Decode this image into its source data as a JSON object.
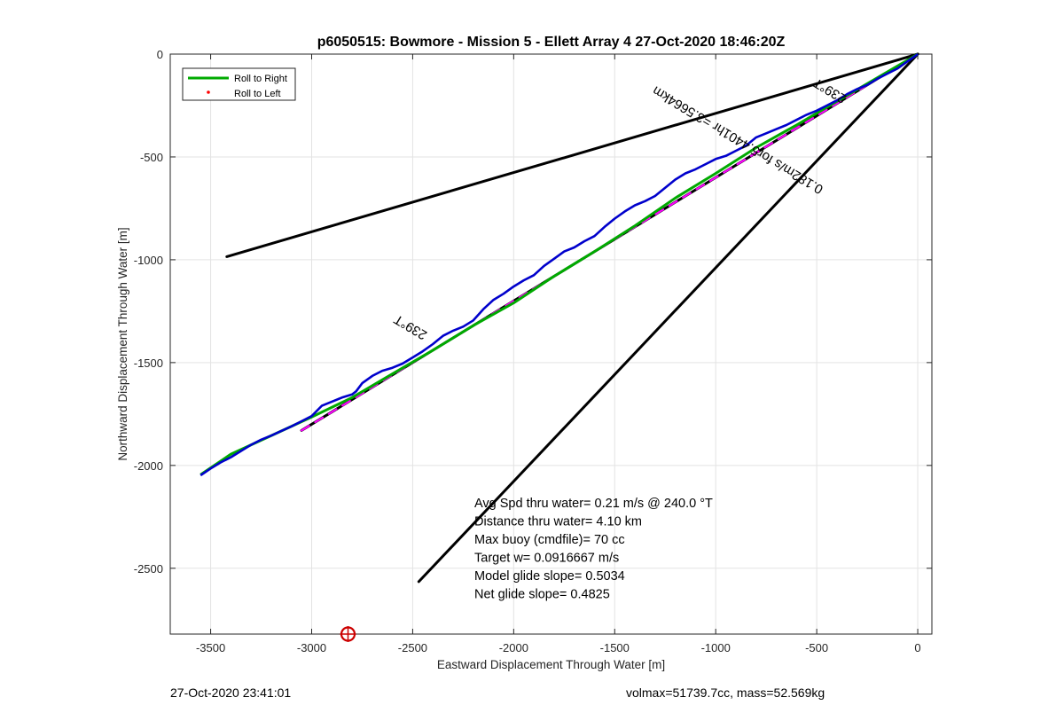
{
  "chart_data": {
    "type": "line",
    "title": "p6050515: Bowmore - Mission 5 - Ellett Array 4 27-Oct-2020 18:46:20Z",
    "xlabel": "Eastward Displacement Through Water [m]",
    "ylabel": "Northward Displacement Through Water [m]",
    "xlim": [
      -3700,
      70
    ],
    "ylim": [
      -2820,
      0
    ],
    "xticks": [
      -3500,
      -3000,
      -2500,
      -2000,
      -1500,
      -1000,
      -500,
      0
    ],
    "xtick_labels": [
      "-3500",
      "-3000",
      "-2500",
      "-2000",
      "-1500",
      "-1000",
      "-500",
      "0"
    ],
    "yticks": [
      0,
      -500,
      -1000,
      -1500,
      -2000,
      -2500
    ],
    "ytick_labels": [
      "0",
      "-500",
      "-1000",
      "-1500",
      "-2000",
      "-2500"
    ],
    "grid": true,
    "legend": {
      "position": "top-left",
      "entries": [
        {
          "label": "Roll to Right",
          "color": "#00aa00",
          "style": "line"
        },
        {
          "label": "Roll to Left",
          "color": "#ff0000",
          "style": "dot"
        }
      ]
    },
    "series": [
      {
        "name": "Roll to Right",
        "color": "#00aa00",
        "x": [
          -3550,
          -3400,
          -3200,
          -3000,
          -2800,
          -2600,
          -2400,
          -2200,
          -2000,
          -1800,
          -1600,
          -1400,
          -1200,
          -1000,
          -800,
          -600,
          -400,
          -200,
          0
        ],
        "y": [
          -2045,
          -1945,
          -1855,
          -1765,
          -1670,
          -1555,
          -1440,
          -1320,
          -1210,
          -1080,
          -960,
          -835,
          -700,
          -580,
          -455,
          -345,
          -230,
          -115,
          0
        ]
      },
      {
        "color": "#0000cc",
        "x": [
          -3550,
          -3500,
          -3450,
          -3400,
          -3350,
          -3300,
          -3250,
          -3200,
          -3150,
          -3100,
          -3050,
          -3000,
          -2950,
          -2900,
          -2850,
          -2800,
          -2780,
          -2750,
          -2700,
          -2650,
          -2600,
          -2550,
          -2500,
          -2450,
          -2400,
          -2350,
          -2300,
          -2250,
          -2200,
          -2150,
          -2100,
          -2050,
          -2000,
          -1950,
          -1900,
          -1850,
          -1800,
          -1750,
          -1700,
          -1650,
          -1600,
          -1550,
          -1500,
          -1450,
          -1400,
          -1350,
          -1300,
          -1250,
          -1200,
          -1150,
          -1100,
          -1050,
          -1000,
          -950,
          -900,
          -850,
          -800,
          -750,
          -700,
          -650,
          -600,
          -550,
          -500,
          -450,
          -400,
          -350,
          -300,
          -250,
          -200,
          -150,
          -100,
          -50,
          0
        ],
        "y": [
          -2048,
          -2015,
          -1985,
          -1960,
          -1930,
          -1900,
          -1875,
          -1855,
          -1832,
          -1810,
          -1785,
          -1760,
          -1710,
          -1690,
          -1670,
          -1655,
          -1640,
          -1600,
          -1565,
          -1540,
          -1525,
          -1505,
          -1475,
          -1445,
          -1410,
          -1370,
          -1345,
          -1325,
          -1295,
          -1240,
          -1195,
          -1165,
          -1130,
          -1100,
          -1075,
          -1030,
          -995,
          -960,
          -940,
          -910,
          -885,
          -840,
          -800,
          -765,
          -735,
          -715,
          -690,
          -650,
          -610,
          -580,
          -560,
          -535,
          -510,
          -495,
          -470,
          -445,
          -405,
          -385,
          -365,
          -345,
          -320,
          -295,
          -275,
          -250,
          -225,
          -195,
          -170,
          -150,
          -120,
          -95,
          -70,
          -35,
          0
        ]
      }
    ],
    "reference_lines": [
      {
        "name": "Target heading",
        "color": "#000000",
        "x": [
          -3050,
          0
        ],
        "y": [
          -1830,
          0
        ]
      },
      {
        "name": "Target heading overlay",
        "color": "#ff00ff",
        "dashed": true,
        "x": [
          -3050,
          0
        ],
        "y": [
          -1830,
          0
        ]
      },
      {
        "name": "Heading bound upper",
        "color": "#000000",
        "x": [
          -3420,
          0
        ],
        "y": [
          -985,
          0
        ]
      },
      {
        "name": "Heading bound lower",
        "color": "#000000",
        "x": [
          -2470,
          0
        ],
        "y": [
          -2565,
          0
        ]
      }
    ],
    "marker": {
      "x": -2820,
      "y": -2820,
      "color": "#cc0000"
    },
    "annotations": [
      {
        "text": "239°T",
        "x": -2500,
        "y": -1310,
        "rotation_deg": 211
      },
      {
        "text": "239°T",
        "x": -425,
        "y": -160,
        "rotation_deg": 211
      },
      {
        "text": "0.182m/s for5.4401hr =3.5664km",
        "x": -880,
        "y": -400,
        "rotation_deg": 211
      }
    ],
    "stats_text": [
      "Avg Spd thru water=  0.21 m/s @ 240.0 °T",
      "Distance thru water=  4.10 km",
      "Max buoy (cmdfile)= 70 cc",
      "Target w= 0.0916667 m/s",
      "Model glide slope= 0.5034",
      "Net glide slope= 0.4825"
    ]
  },
  "footer": {
    "left": "27-Oct-2020 23:41:01",
    "right": "volmax=51739.7cc, mass=52.569kg"
  }
}
